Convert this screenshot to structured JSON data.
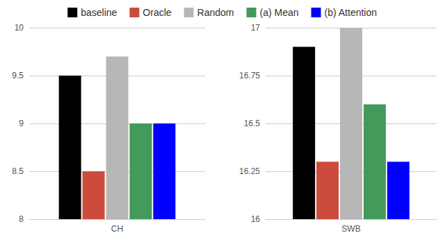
{
  "chart_data": [
    {
      "type": "bar",
      "categories": [
        "CH"
      ],
      "series": [
        {
          "name": "baseline",
          "color": "#000000",
          "values": [
            9.5
          ]
        },
        {
          "name": "Oracle",
          "color": "#cc4b3c",
          "values": [
            8.5
          ]
        },
        {
          "name": "Random",
          "color": "#b7b7b7",
          "values": [
            9.7
          ]
        },
        {
          "name": "(a) Mean",
          "color": "#439a5b",
          "values": [
            9.0
          ]
        },
        {
          "name": "(b) Attention",
          "color": "#0000ff",
          "values": [
            9.0
          ]
        }
      ],
      "ylim": [
        8,
        10
      ],
      "yticks": [
        8,
        8.5,
        9,
        9.5,
        10
      ],
      "grid": true,
      "legend": "top"
    },
    {
      "type": "bar",
      "categories": [
        "SWB"
      ],
      "series": [
        {
          "name": "baseline",
          "color": "#000000",
          "values": [
            16.9
          ]
        },
        {
          "name": "Oracle",
          "color": "#cc4b3c",
          "values": [
            16.3
          ]
        },
        {
          "name": "Random",
          "color": "#b7b7b7",
          "values": [
            17.0
          ]
        },
        {
          "name": "(a) Mean",
          "color": "#439a5b",
          "values": [
            16.6
          ]
        },
        {
          "name": "(b) Attention",
          "color": "#0000ff",
          "values": [
            16.3
          ]
        }
      ],
      "ylim": [
        16,
        17
      ],
      "yticks": [
        16,
        16.25,
        16.5,
        16.75,
        17
      ],
      "grid": true,
      "legend": "top"
    }
  ]
}
